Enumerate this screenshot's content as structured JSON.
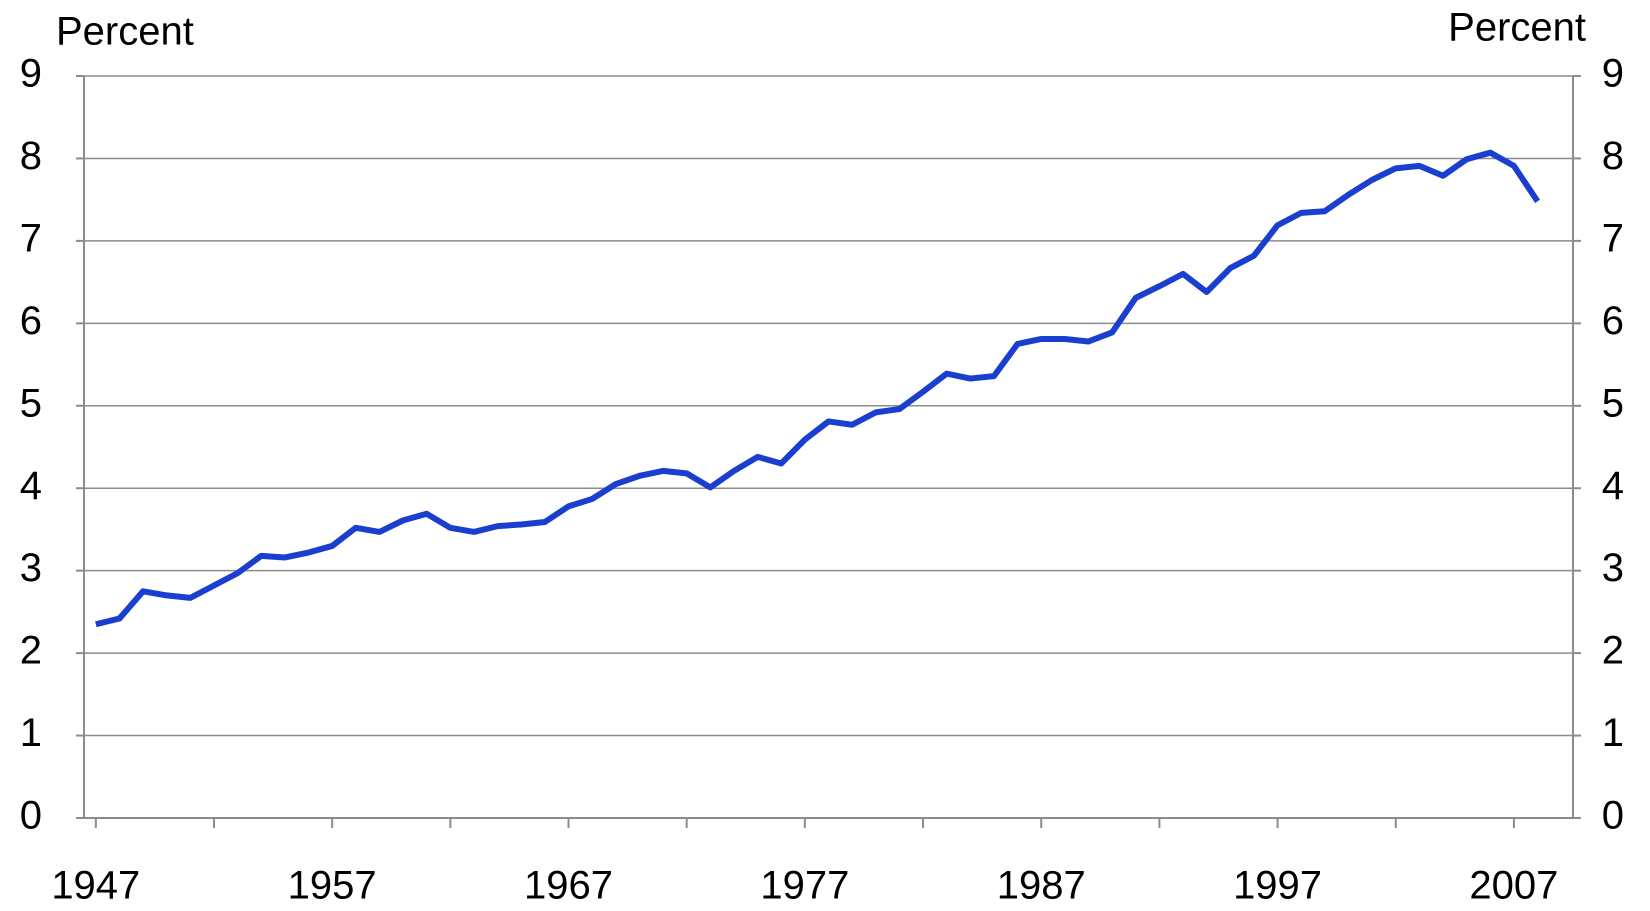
{
  "chart_data": {
    "type": "line",
    "y_label": "Percent",
    "y2_label": "Percent",
    "x": [
      1947,
      1948,
      1949,
      1950,
      1951,
      1952,
      1953,
      1954,
      1955,
      1956,
      1957,
      1958,
      1959,
      1960,
      1961,
      1962,
      1963,
      1964,
      1965,
      1966,
      1967,
      1968,
      1969,
      1970,
      1971,
      1972,
      1973,
      1974,
      1975,
      1976,
      1977,
      1978,
      1979,
      1980,
      1981,
      1982,
      1983,
      1984,
      1985,
      1986,
      1987,
      1988,
      1989,
      1990,
      1991,
      1992,
      1993,
      1994,
      1995,
      1996,
      1997,
      1998,
      1999,
      2000,
      2001,
      2002,
      2003,
      2004,
      2005,
      2006,
      2007,
      2008
    ],
    "series": [
      {
        "color": "#1a3fd0",
        "values": [
          2.35,
          2.42,
          2.75,
          2.7,
          2.67,
          2.82,
          2.97,
          3.18,
          3.16,
          3.22,
          3.3,
          3.52,
          3.47,
          3.61,
          3.69,
          3.52,
          3.47,
          3.54,
          3.56,
          3.59,
          3.78,
          3.87,
          4.05,
          4.15,
          4.21,
          4.18,
          4.01,
          4.21,
          4.38,
          4.3,
          4.59,
          4.81,
          4.77,
          4.92,
          4.96,
          5.17,
          5.39,
          5.33,
          5.36,
          5.75,
          5.81,
          5.81,
          5.78,
          5.89,
          6.31,
          6.45,
          6.6,
          6.38,
          6.67,
          6.82,
          7.19,
          7.34,
          7.36,
          7.56,
          7.74,
          7.88,
          7.91,
          7.79,
          7.99,
          8.07,
          7.91,
          7.48
        ]
      }
    ],
    "xlim": [
      1946.5,
      2009.5
    ],
    "xticks": [
      1947,
      1957,
      1967,
      1977,
      1987,
      1997,
      2007
    ],
    "xminorticks": [
      1952,
      1962,
      1972,
      1982,
      1992,
      2002
    ],
    "ylim": [
      0,
      9
    ],
    "yticks": [
      0,
      1,
      2,
      3,
      4,
      5,
      6,
      7,
      8,
      9
    ],
    "y2lim": [
      0,
      9
    ],
    "y2ticks": [
      0,
      1,
      2,
      3,
      4,
      5,
      6,
      7,
      8,
      9
    ],
    "grid": true
  }
}
